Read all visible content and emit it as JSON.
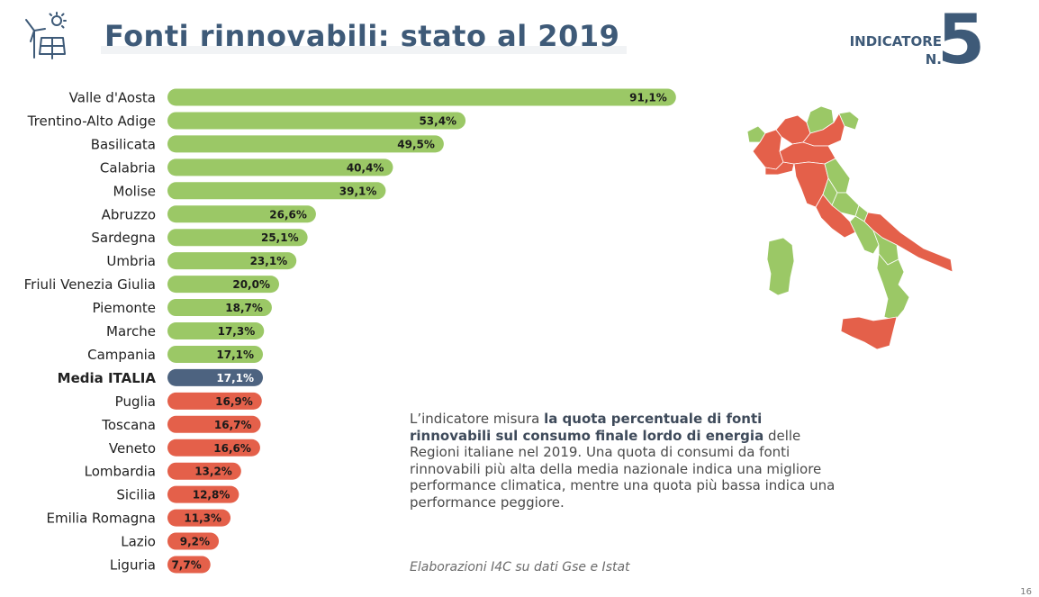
{
  "header": {
    "title": "Fonti rinnovabili: stato al 2019",
    "indicator_label_line1": "INDICATORE",
    "indicator_label_line2": "N.",
    "indicator_number": "5",
    "icon": "wind-solar-icon"
  },
  "chart_data": {
    "type": "bar",
    "orientation": "horizontal",
    "categories": [
      "Valle d'Aosta",
      "Trentino-Alto Adige",
      "Basilicata",
      "Calabria",
      "Molise",
      "Abruzzo",
      "Sardegna",
      "Umbria",
      "Friuli Venezia Giulia",
      "Piemonte",
      "Marche",
      "Campania",
      "Media ITALIA",
      "Puglia",
      "Toscana",
      "Veneto",
      "Lombardia",
      "Sicilia",
      "Emilia Romagna",
      "Lazio",
      "Liguria"
    ],
    "values": [
      91.1,
      53.4,
      49.5,
      40.4,
      39.1,
      26.6,
      25.1,
      23.1,
      20.0,
      18.7,
      17.3,
      17.1,
      17.1,
      16.9,
      16.7,
      16.6,
      13.2,
      12.8,
      11.3,
      9.2,
      7.7
    ],
    "labels": [
      "91,1%",
      "53,4%",
      "49,5%",
      "40,4%",
      "39,1%",
      "26,6%",
      "25,1%",
      "23,1%",
      "20,0%",
      "18,7%",
      "17,3%",
      "17,1%",
      "17,1%",
      "16,9%",
      "16,7%",
      "16,6%",
      "13,2%",
      "12,8%",
      "11,3%",
      "9,2%",
      "7,7%"
    ],
    "highlight_category": "Media ITALIA",
    "xlim": [
      0,
      100
    ],
    "grid": false,
    "colors": {
      "above": "#9bc866",
      "average": "#4d6380",
      "below": "#e4604a"
    }
  },
  "map": {
    "icon": "italy-regions-map-icon",
    "colors": {
      "above": "#9bc866",
      "below": "#e4604a"
    }
  },
  "description": {
    "part1": "L’indicatore misura ",
    "bold": "la quota percentuale di fonti rinnovabili sul consumo finale lordo di energia",
    "part2": " delle Regioni italiane nel 2019. Una quota di consumi da fonti rinnovabili più alta della media nazionale indica una migliore performance climatica, mentre una quota più bassa indica una performance peggiore."
  },
  "source": "Elaborazioni I4C su dati Gse e Istat",
  "page_number": "16"
}
